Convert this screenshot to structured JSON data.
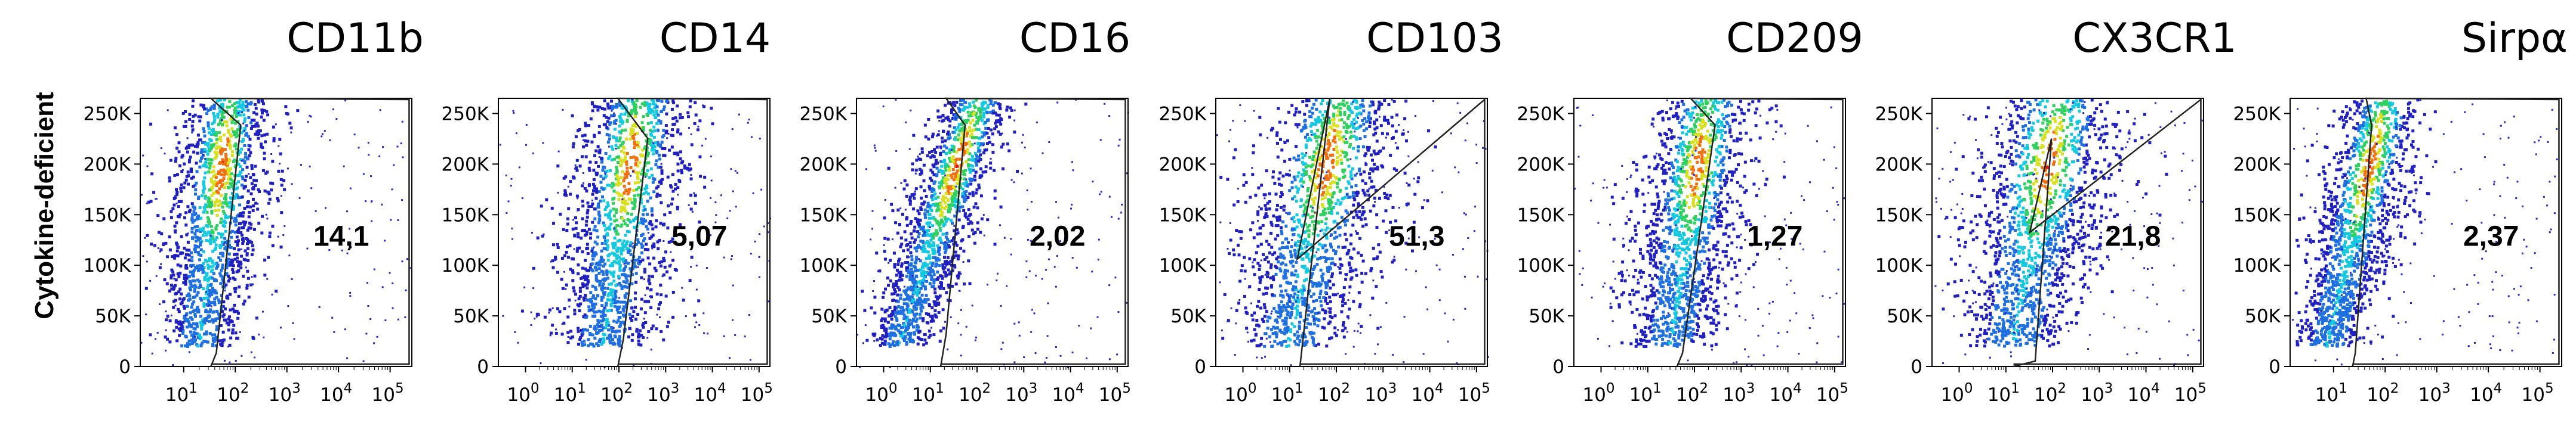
{
  "ylabel": "Cytokine-deficient",
  "chart_data": [
    {
      "type": "density-scatter",
      "title": "CD11b",
      "gate_value": "14,1",
      "yticks": [
        "250K",
        "200K",
        "150K",
        "100K",
        "50K",
        "0"
      ],
      "xticks": [
        {
          "base": "10",
          "exp": "1"
        },
        {
          "base": "10",
          "exp": "2"
        },
        {
          "base": "10",
          "exp": "3"
        },
        {
          "base": "10",
          "exp": "4"
        },
        {
          "base": "10",
          "exp": "5"
        }
      ]
    },
    {
      "type": "density-scatter",
      "title": "CD14",
      "gate_value": "5,07",
      "yticks": [
        "250K",
        "200K",
        "150K",
        "100K",
        "50K",
        "0"
      ],
      "xticks": [
        {
          "base": "10",
          "exp": "0"
        },
        {
          "base": "10",
          "exp": "1"
        },
        {
          "base": "10",
          "exp": "2"
        },
        {
          "base": "10",
          "exp": "3"
        },
        {
          "base": "10",
          "exp": "4"
        },
        {
          "base": "10",
          "exp": "5"
        }
      ]
    },
    {
      "type": "density-scatter",
      "title": "CD16",
      "gate_value": "2,02",
      "yticks": [
        "250K",
        "200K",
        "150K",
        "100K",
        "50K",
        "0"
      ],
      "xticks": [
        {
          "base": "10",
          "exp": "0"
        },
        {
          "base": "10",
          "exp": "1"
        },
        {
          "base": "10",
          "exp": "2"
        },
        {
          "base": "10",
          "exp": "3"
        },
        {
          "base": "10",
          "exp": "4"
        },
        {
          "base": "10",
          "exp": "5"
        }
      ]
    },
    {
      "type": "density-scatter",
      "title": "CD103",
      "gate_value": "51,3",
      "yticks": [
        "250K",
        "200K",
        "150K",
        "100K",
        "50K",
        "0"
      ],
      "xticks": [
        {
          "base": "10",
          "exp": "0"
        },
        {
          "base": "10",
          "exp": "1"
        },
        {
          "base": "10",
          "exp": "2"
        },
        {
          "base": "10",
          "exp": "3"
        },
        {
          "base": "10",
          "exp": "4"
        },
        {
          "base": "10",
          "exp": "5"
        }
      ]
    },
    {
      "type": "density-scatter",
      "title": "CD209",
      "gate_value": "1,27",
      "yticks": [
        "250K",
        "200K",
        "150K",
        "100K",
        "50K",
        "0"
      ],
      "xticks": [
        {
          "base": "10",
          "exp": "0"
        },
        {
          "base": "10",
          "exp": "1"
        },
        {
          "base": "10",
          "exp": "2"
        },
        {
          "base": "10",
          "exp": "3"
        },
        {
          "base": "10",
          "exp": "4"
        },
        {
          "base": "10",
          "exp": "5"
        }
      ]
    },
    {
      "type": "density-scatter",
      "title": "CX3CR1",
      "gate_value": "21,8",
      "yticks": [
        "250K",
        "200K",
        "150K",
        "100K",
        "50K",
        "0"
      ],
      "xticks": [
        {
          "base": "10",
          "exp": "0"
        },
        {
          "base": "10",
          "exp": "1"
        },
        {
          "base": "10",
          "exp": "2"
        },
        {
          "base": "10",
          "exp": "3"
        },
        {
          "base": "10",
          "exp": "4"
        },
        {
          "base": "10",
          "exp": "5"
        }
      ]
    },
    {
      "type": "density-scatter",
      "title": "Sirpα",
      "gate_value": "2,37",
      "yticks": [
        "250K",
        "200K",
        "150K",
        "100K",
        "50K",
        "0"
      ],
      "xticks": [
        {
          "base": "10",
          "exp": "1"
        },
        {
          "base": "10",
          "exp": "2"
        },
        {
          "base": "10",
          "exp": "3"
        },
        {
          "base": "10",
          "exp": "4"
        },
        {
          "base": "10",
          "exp": "5"
        }
      ]
    }
  ],
  "density_colors": [
    "#2020c0",
    "#1e6fe0",
    "#14c8e0",
    "#30d060",
    "#d8e020",
    "#f07010",
    "#e01010"
  ]
}
